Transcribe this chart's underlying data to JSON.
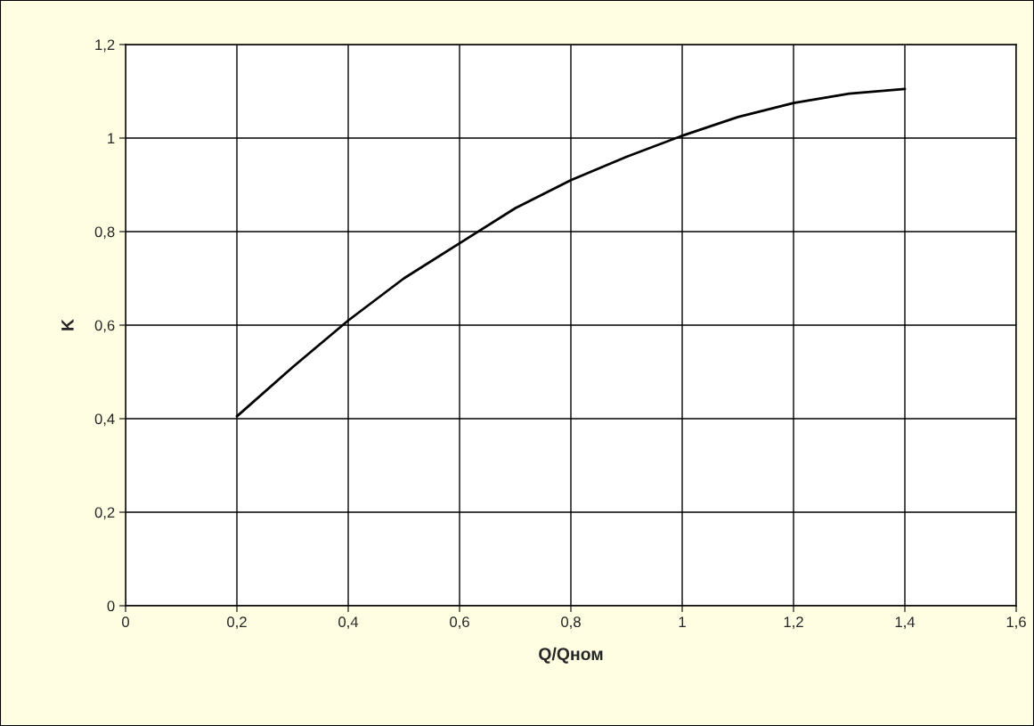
{
  "chart_data": {
    "type": "line",
    "xlabel": "Q/Qном",
    "ylabel": "K",
    "x": [
      0.2,
      0.3,
      0.4,
      0.5,
      0.6,
      0.7,
      0.8,
      0.9,
      1.0,
      1.1,
      1.2,
      1.3,
      1.4
    ],
    "series": [
      {
        "color": "#000000",
        "values": [
          0.405,
          0.51,
          0.61,
          0.7,
          0.775,
          0.85,
          0.91,
          0.96,
          1.005,
          1.045,
          1.075,
          1.095,
          1.105
        ]
      }
    ],
    "xlim": [
      0,
      1.6
    ],
    "xticks": [
      0,
      {
        "value": 0.2,
        "label": "0,2"
      },
      {
        "value": 0.4,
        "label": "0,4"
      },
      {
        "value": 0.6,
        "label": "0,6"
      },
      {
        "value": 0.8,
        "label": "0,8"
      },
      1,
      {
        "value": 1.2,
        "label": "1,2"
      },
      {
        "value": 1.4,
        "label": "1,4"
      },
      {
        "value": 1.6,
        "label": "1,6"
      }
    ],
    "ylim": [
      0,
      1.2
    ],
    "yticks": [
      0,
      {
        "value": 0.2,
        "label": "0,2"
      },
      {
        "value": 0.4,
        "label": "0,4"
      },
      {
        "value": 0.6,
        "label": "0,6"
      },
      {
        "value": 0.8,
        "label": "0,8"
      },
      1,
      {
        "value": 1.2,
        "label": "1,2"
      }
    ],
    "grid": true,
    "marker": "none",
    "line_style": "solid"
  }
}
